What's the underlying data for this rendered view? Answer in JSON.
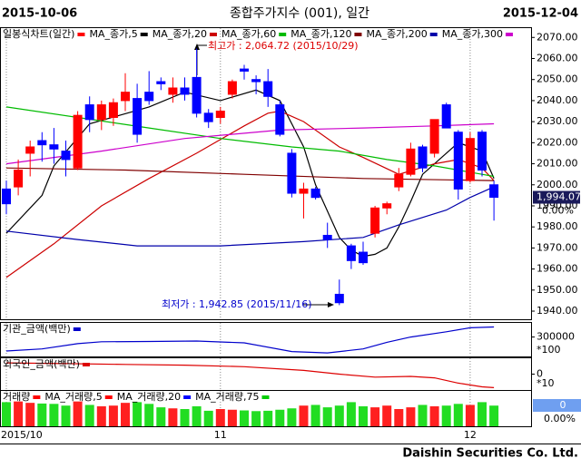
{
  "chart_data": [
    {
      "type": "candlestick",
      "date_start": "2015-10-06",
      "title": "종합주가지수 (001), 일간",
      "date_end": "2015-12-04",
      "legend_title": "일봉식차트(일간)",
      "legend_color": "#ff0000",
      "up_color": "#ff0000",
      "down_color": "#0000ff",
      "open": [
        1998,
        1999,
        2015,
        2021,
        2019,
        2016,
        2008,
        2038,
        2031,
        2032,
        2040,
        2041,
        2044,
        2049,
        2043,
        2046,
        2051,
        2034,
        2032,
        2043,
        2055,
        2050,
        2049,
        2038,
        2015,
        1996,
        1998,
        1976,
        1948,
        1971,
        1968,
        1977,
        1989,
        1999,
        2005,
        2018,
        2015,
        2038,
        2025,
        2002,
        2025,
        2000
      ],
      "high": [
        2002,
        2012,
        2021,
        2025,
        2027,
        2021,
        2035,
        2042,
        2040,
        2041,
        2053,
        2048,
        2054,
        2051,
        2051,
        2051,
        2064.72,
        2036,
        2037,
        2050,
        2057,
        2052,
        2055,
        2040,
        2017,
        2001,
        1999,
        1982,
        1955,
        1972,
        1973,
        1990,
        1992,
        2008,
        2020,
        2019,
        2031,
        2039,
        2026,
        2025,
        2026,
        2002
      ],
      "low": [
        1986,
        1995,
        2004,
        2011,
        2010,
        2004,
        2007,
        2025,
        2026,
        2028,
        2035,
        2020,
        2038,
        2045,
        2039,
        2040,
        2032,
        2027,
        2029,
        2041,
        2050,
        2043,
        2037,
        2023,
        1994,
        1984,
        1993,
        1970,
        1942.85,
        1960,
        1962,
        1975,
        1986,
        1997,
        2004,
        2006,
        2013,
        2027,
        1993,
        2001,
        2004,
        1983
      ],
      "close": [
        1991,
        2007,
        2018,
        2019,
        2017,
        2012,
        2033,
        2031,
        2038,
        2039,
        2044,
        2024,
        2040,
        2048,
        2046,
        2043,
        2034,
        2030,
        2035,
        2049,
        2054,
        2049,
        2042,
        2024,
        1996,
        1998,
        1994,
        1974,
        1944,
        1964,
        1963,
        1989,
        1991,
        2005,
        2017,
        2008,
        2031,
        2027,
        1998,
        2022,
        2007,
        1994.07
      ],
      "series": [
        {
          "name": "MA_종가,5",
          "color": "#000000",
          "x": [
            0,
            3,
            4,
            7,
            12,
            15,
            18,
            21,
            23,
            25,
            26,
            28,
            29,
            30,
            31,
            32,
            33,
            34,
            35,
            37,
            38,
            39,
            40,
            41
          ],
          "values": [
            1977,
            1995,
            2009,
            2029,
            2037,
            2044,
            2040,
            2045,
            2040,
            2018,
            2000,
            1975,
            1969,
            1966,
            1967,
            1970,
            1980,
            1992,
            2005,
            2015,
            2020,
            2018,
            2016,
            2003
          ]
        },
        {
          "name": "MA_종가,20",
          "color": "#cc0000",
          "x": [
            0,
            4,
            8,
            12,
            16,
            20,
            22,
            23,
            25,
            28,
            30,
            33,
            36,
            38,
            40,
            41
          ],
          "values": [
            1956,
            1972,
            1990,
            2003,
            2015,
            2028,
            2034,
            2035,
            2030,
            2018,
            2013,
            2005,
            2010,
            2012,
            2008,
            2002
          ]
        },
        {
          "name": "MA_종가,60",
          "color": "#00bb00",
          "x": [
            0,
            6,
            12,
            18,
            24,
            28,
            32,
            36,
            40,
            41
          ],
          "values": [
            2037,
            2032,
            2027,
            2022,
            2018,
            2016,
            2012,
            2009,
            2005,
            2004
          ]
        },
        {
          "name": "MA_종가,120",
          "color": "#800000",
          "x": [
            0,
            10,
            20,
            30,
            41
          ],
          "values": [
            2008,
            2007,
            2005,
            2003,
            2002
          ]
        },
        {
          "name": "MA_종가,200",
          "color": "#0000aa",
          "x": [
            0,
            6,
            11,
            18,
            25,
            30,
            33,
            37,
            39,
            41
          ],
          "values": [
            1978,
            1974,
            1971,
            1971,
            1973,
            1975,
            1981,
            1988,
            1994,
            1999
          ]
        },
        {
          "name": "MA_종가,300",
          "color": "#cc00cc",
          "x": [
            0,
            8,
            15,
            23,
            30,
            36,
            41
          ],
          "values": [
            2010,
            2016,
            2022,
            2026,
            2027,
            2028,
            2029
          ]
        }
      ],
      "ylim": [
        1937,
        2074
      ],
      "yticks": [
        {
          "value": 1940,
          "label": "1940.00"
        },
        {
          "value": 1950,
          "label": "1950.00"
        },
        {
          "value": 1960,
          "label": "1960.00"
        },
        {
          "value": 1970,
          "label": "1970.00"
        },
        {
          "value": 1980,
          "label": "1980.00"
        },
        {
          "value": 1990,
          "label": "1990.00"
        },
        {
          "value": 2000,
          "label": "2000.00"
        },
        {
          "value": 2010,
          "label": "2010.00"
        },
        {
          "value": 2020,
          "label": "2020.00"
        },
        {
          "value": 2030,
          "label": "2030.00"
        },
        {
          "value": 2040,
          "label": "2040.00"
        },
        {
          "value": 2050,
          "label": "2050.00"
        },
        {
          "value": 2060,
          "label": "2060.00"
        },
        {
          "value": 2070,
          "label": "2070.00"
        }
      ],
      "xticks": [
        {
          "value": 0,
          "label": "2015/10"
        },
        {
          "value": 18,
          "label": "11"
        },
        {
          "value": 39,
          "label": "12"
        }
      ],
      "high_annotation": "최고가 : 2,064.72 (2015/10/29)",
      "low_annotation": "최저가 : 1,942.85 (2015/11/16)",
      "last_label": "1,994.07",
      "last_change": "0.00%"
    },
    {
      "type": "line",
      "series": [
        {
          "name": "기관_금액(백만)",
          "color": "#0000cc",
          "x": [
            0,
            3,
            6,
            8,
            12,
            16,
            20,
            24,
            27,
            30,
            32,
            34,
            37,
            39,
            41
          ],
          "values": [
            247000,
            255000,
            275000,
            282000,
            283000,
            285000,
            278000,
            245000,
            240000,
            255000,
            280000,
            300000,
            320000,
            335000,
            338000
          ]
        }
      ],
      "ylim": [
        230000,
        350000
      ],
      "yticks": [
        300000
      ],
      "unit_label": "*100"
    },
    {
      "type": "line",
      "series": [
        {
          "name": "외국인_금액(백만)",
          "color": "#dd0000",
          "x": [
            0,
            5,
            10,
            15,
            20,
            25,
            28,
            31,
            34,
            36,
            38,
            40,
            41
          ],
          "values": [
            15,
            14,
            13,
            12,
            10,
            5,
            0,
            -4,
            -3,
            -5,
            -12,
            -17,
            -18
          ]
        }
      ],
      "ylim": [
        -20,
        20
      ],
      "yticks": [
        0
      ],
      "unit_label": "*10"
    },
    {
      "type": "bar",
      "title": "거래량",
      "title_color": "#ff0000",
      "values": [
        70,
        72,
        68,
        66,
        65,
        60,
        72,
        62,
        58,
        60,
        68,
        70,
        65,
        55,
        52,
        50,
        58,
        45,
        50,
        48,
        46,
        44,
        45,
        48,
        52,
        60,
        62,
        55,
        60,
        70,
        58,
        55,
        60,
        50,
        55,
        62,
        58,
        60,
        65,
        62,
        70,
        60
      ],
      "up_color": "#ff2020",
      "down_color": "#22dd22",
      "legend": [
        {
          "name": "MA_거래량,5",
          "color": "#ff0000"
        },
        {
          "name": "MA_거래량,20",
          "color": "#0000ff"
        },
        {
          "name": "MA_거래량,75",
          "color": "#00cc00"
        }
      ],
      "ylim": [
        0,
        100
      ],
      "yticks": [
        0
      ],
      "change_label": "0.00%"
    }
  ],
  "footer": "Daishin Securities Co. Ltd."
}
